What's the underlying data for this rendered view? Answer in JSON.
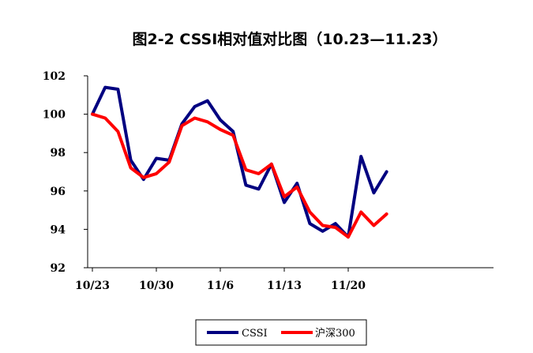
{
  "chart_data": {
    "type": "line",
    "title": "图2-2 CSSI相对值对比图（10.23—11.23）",
    "xlabel": "",
    "ylabel": "",
    "ylim": [
      92,
      102
    ],
    "yticks": [
      92,
      94,
      96,
      98,
      100,
      102
    ],
    "x": [
      "10/23",
      "10/24",
      "10/25",
      "10/26",
      "10/29",
      "10/30",
      "10/31",
      "11/1",
      "11/2",
      "11/5",
      "11/6",
      "11/7",
      "11/8",
      "11/9",
      "11/12",
      "11/13",
      "11/14",
      "11/15",
      "11/16",
      "11/19",
      "11/20",
      "11/21",
      "11/22",
      "11/23"
    ],
    "xtick_labels": [
      "10/23",
      "10/30",
      "11/6",
      "11/13",
      "11/20"
    ],
    "grid": false,
    "legend_position": "bottom-center",
    "series": [
      {
        "name": "CSSI",
        "color": "#000080",
        "values": [
          100.0,
          101.4,
          101.3,
          97.6,
          96.6,
          97.7,
          97.6,
          99.5,
          100.4,
          100.7,
          99.7,
          99.1,
          96.3,
          96.1,
          97.4,
          95.4,
          96.4,
          94.3,
          93.9,
          94.3,
          93.6,
          97.8,
          95.9,
          97.0
        ]
      },
      {
        "name": "沪深300",
        "color": "#ff0000",
        "values": [
          100.0,
          99.8,
          99.1,
          97.2,
          96.7,
          96.9,
          97.5,
          99.4,
          99.8,
          99.6,
          99.2,
          98.9,
          97.1,
          96.9,
          97.4,
          95.7,
          96.2,
          94.9,
          94.2,
          94.1,
          93.6,
          94.9,
          94.2,
          94.8
        ]
      }
    ]
  }
}
